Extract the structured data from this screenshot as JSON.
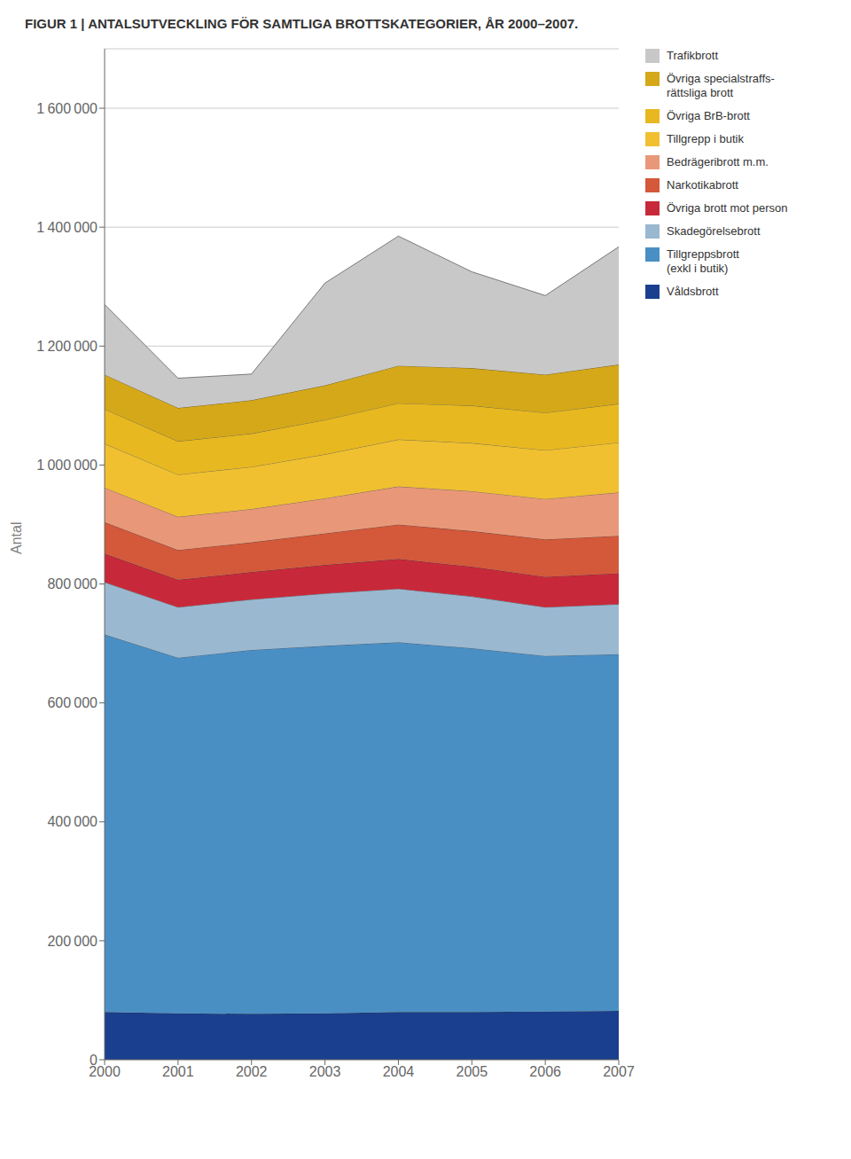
{
  "chart_data": {
    "type": "area",
    "stacked": true,
    "title": "FIGUR 1  |  ANTALSUTVECKLING FÖR SAMTLIGA BROTTSKATEGORIER, ÅR 2000–2007.",
    "ylabel": "Antal",
    "x": [
      2000,
      2001,
      2002,
      2003,
      2004,
      2005,
      2006,
      2007
    ],
    "xlim": [
      2000,
      2007
    ],
    "xticks": [
      2000,
      2001,
      2002,
      2003,
      2004,
      2005,
      2006,
      2007
    ],
    "ylim": [
      0,
      1700000
    ],
    "yticks": [
      0,
      {
        "value": 200000,
        "label": "200 000"
      },
      {
        "value": 400000,
        "label": "400 000"
      },
      {
        "value": 600000,
        "label": "600 000"
      },
      {
        "value": 800000,
        "label": "800 000"
      },
      {
        "value": 1000000,
        "label": "1 000 000"
      },
      {
        "value": 1200000,
        "label": "1 200 000"
      },
      {
        "value": 1400000,
        "label": "1 400 000"
      },
      {
        "value": 1600000,
        "label": "1 600 000"
      }
    ],
    "grid": "y",
    "legend": "right",
    "series": [
      {
        "name": "Våldsbrott",
        "color": "#1a3f8f",
        "values": [
          80000,
          78000,
          77000,
          78000,
          80000,
          80000,
          81000,
          82000
        ]
      },
      {
        "name": "Tillgreppsbrott\n(exkl i butik)",
        "color": "#4a8fc4",
        "values": [
          635000,
          598000,
          612000,
          618000,
          622000,
          612000,
          598000,
          600000
        ]
      },
      {
        "name": "Skadegörelsebrott",
        "color": "#9ab8d0",
        "values": [
          88000,
          85000,
          85000,
          88000,
          90000,
          87000,
          82000,
          84000
        ]
      },
      {
        "name": "Övriga brott mot person",
        "color": "#c8293a",
        "values": [
          48000,
          46000,
          46000,
          48000,
          50000,
          50000,
          51000,
          52000
        ]
      },
      {
        "name": "Narkotikabrott",
        "color": "#d4583a",
        "values": [
          53000,
          50000,
          50000,
          53000,
          58000,
          60000,
          63000,
          63000
        ]
      },
      {
        "name": "Bedrägeribrott m.m.",
        "color": "#e89878",
        "values": [
          58000,
          56000,
          56000,
          59000,
          64000,
          67000,
          68000,
          73000
        ]
      },
      {
        "name": "Tillgrepp i butik",
        "color": "#f0c030",
        "values": [
          74000,
          71000,
          71000,
          74000,
          79000,
          81000,
          82000,
          84000
        ]
      },
      {
        "name": "Övriga BrB-brott",
        "color": "#e8b820",
        "values": [
          58000,
          56000,
          56000,
          58000,
          61000,
          63000,
          63000,
          65000
        ]
      },
      {
        "name": "Övriga specialstraffs-\nrättsliga brott",
        "color": "#d4a818",
        "values": [
          58000,
          56000,
          56000,
          58000,
          63000,
          63000,
          64000,
          66000
        ]
      },
      {
        "name": "Trafikbrott",
        "color": "#c8c8c8",
        "values": [
          118000,
          50000,
          44000,
          172000,
          218000,
          162000,
          133000,
          198000
        ]
      }
    ]
  }
}
